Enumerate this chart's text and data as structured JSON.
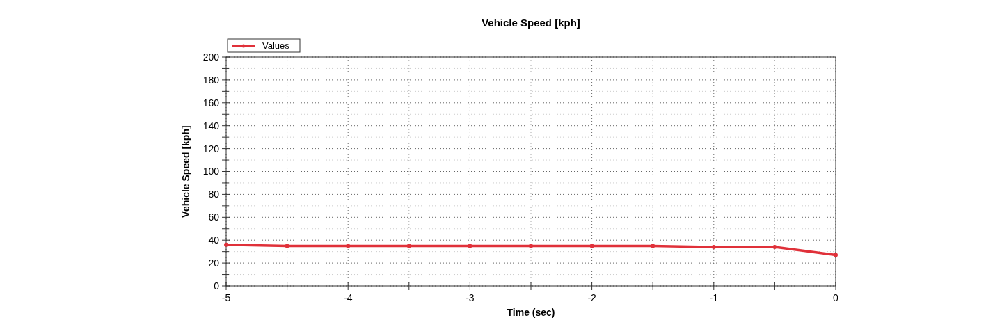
{
  "chart_data": {
    "type": "line",
    "title": "Vehicle Speed [kph]",
    "xlabel": "Time (sec)",
    "ylabel": "Vehicle Speed [kph]",
    "x": [
      -5,
      -4.5,
      -4,
      -3.5,
      -3,
      -2.5,
      -2,
      -1.5,
      -1,
      -0.5,
      0
    ],
    "series": [
      {
        "name": "Values",
        "color": "#e0313a",
        "values": [
          36,
          35,
          35,
          35,
          35,
          35,
          35,
          35,
          34,
          34,
          27
        ]
      }
    ],
    "xlim": [
      -5,
      0
    ],
    "xticks": [
      -5,
      {
        "value": -4.5,
        "label": null
      },
      -4,
      {
        "value": -3.5,
        "label": null
      },
      -3,
      {
        "value": -2.5,
        "label": null
      },
      -2,
      {
        "value": -1.5,
        "label": null
      },
      -1,
      {
        "value": -0.5,
        "label": null
      },
      0
    ],
    "ylim": [
      0,
      200
    ],
    "yticks": [
      0,
      {
        "value": 10,
        "label": null
      },
      20,
      {
        "value": 30,
        "label": null
      },
      40,
      {
        "value": 50,
        "label": null
      },
      60,
      {
        "value": 70,
        "label": null
      },
      80,
      {
        "value": 90,
        "label": null
      },
      100,
      {
        "value": 110,
        "label": null
      },
      120,
      {
        "value": 130,
        "label": null
      },
      140,
      {
        "value": 150,
        "label": null
      },
      160,
      {
        "value": 170,
        "label": null
      },
      180,
      {
        "value": 190,
        "label": null
      },
      200
    ],
    "grid": true,
    "legend": "top left",
    "marker": "circle",
    "line_style": "solid"
  }
}
